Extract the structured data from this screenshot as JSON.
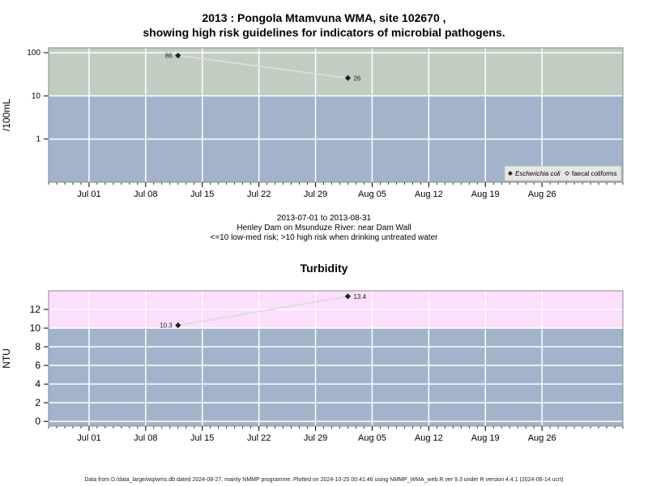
{
  "title_line1": "2013 : Pongola Mtamvuna WMA, site 102670 ,",
  "title_line2": "showing high risk guidelines for indicators of microbial pathogens.",
  "info_range": "2013-07-01 to 2013-08-31",
  "info_site": "Henley Dam on Msunduze River: near Dam Wall",
  "info_risk": "<=10 low-med risk; >10 high risk when drinking untreated water",
  "turbidity_title": "Turbidity",
  "footer": "Data from D:/data_large/wq/wms.db dated 2024-08-27, mainly NMMP programme. Plotted on 2024-10-25 00:41:46 using NMMP_WMA_web.R ver 9.3 under R version 4.4.1 (2024-06-14 ucrt)",
  "colors": {
    "low_band": "#a3b3cc",
    "micro_high_band": "#c2cdc1",
    "turb_high_band": "#fcdffc",
    "line": "#dcdcdc",
    "point": "#222222"
  },
  "chart_data": [
    {
      "type": "line",
      "title": "",
      "ylabel": "/100mL",
      "yscale": "log",
      "ylim": [
        0.1,
        130
      ],
      "xlim": [
        "2013-06-26",
        "2013-09-05"
      ],
      "x_ticks": [
        {
          "date": "2013-07-01",
          "label": "Jul 01"
        },
        {
          "date": "2013-07-08",
          "label": "Jul 08"
        },
        {
          "date": "2013-07-15",
          "label": "Jul 15"
        },
        {
          "date": "2013-07-22",
          "label": "Jul 22"
        },
        {
          "date": "2013-07-29",
          "label": "Jul 29"
        },
        {
          "date": "2013-08-05",
          "label": "Aug 05"
        },
        {
          "date": "2013-08-12",
          "label": "Aug 12"
        },
        {
          "date": "2013-08-19",
          "label": "Aug 19"
        },
        {
          "date": "2013-08-26",
          "label": "Aug 26"
        }
      ],
      "y_ticks": [
        {
          "value": 1,
          "label": "1"
        },
        {
          "value": 10,
          "label": "10"
        },
        {
          "value": 100,
          "label": "100"
        }
      ],
      "threshold": 10,
      "grid": true,
      "legend_position": "bottom-right",
      "legend": [
        {
          "label": "Escherichia coli",
          "marker": "filled-diamond"
        },
        {
          "label": "faecal coliforms",
          "marker": "open-diamond"
        }
      ],
      "series": [
        {
          "name": "Escherichia coli",
          "points": [
            {
              "x": "2013-07-12",
              "y": 86,
              "label": "86"
            },
            {
              "x": "2013-08-02",
              "y": 26,
              "label": "26"
            }
          ]
        }
      ]
    },
    {
      "type": "line",
      "title": "Turbidity",
      "ylabel": "NTU",
      "ylim": [
        -0.5,
        14
      ],
      "xlim": [
        "2013-06-26",
        "2013-09-05"
      ],
      "x_ticks": [
        {
          "date": "2013-07-01",
          "label": "Jul 01"
        },
        {
          "date": "2013-07-08",
          "label": "Jul 08"
        },
        {
          "date": "2013-07-15",
          "label": "Jul 15"
        },
        {
          "date": "2013-07-22",
          "label": "Jul 22"
        },
        {
          "date": "2013-07-29",
          "label": "Jul 29"
        },
        {
          "date": "2013-08-05",
          "label": "Aug 05"
        },
        {
          "date": "2013-08-12",
          "label": "Aug 12"
        },
        {
          "date": "2013-08-19",
          "label": "Aug 19"
        },
        {
          "date": "2013-08-26",
          "label": "Aug 26"
        }
      ],
      "y_ticks": [
        {
          "value": 0,
          "label": "0"
        },
        {
          "value": 2,
          "label": "2"
        },
        {
          "value": 4,
          "label": "4"
        },
        {
          "value": 6,
          "label": "6"
        },
        {
          "value": 8,
          "label": "8"
        },
        {
          "value": 10,
          "label": "10"
        },
        {
          "value": 12,
          "label": "12"
        }
      ],
      "threshold": 10,
      "grid": true,
      "series": [
        {
          "name": "",
          "points": [
            {
              "x": "2013-07-12",
              "y": 10.3,
              "label": "10.3"
            },
            {
              "x": "2013-08-02",
              "y": 13.4,
              "label": "13.4"
            }
          ]
        }
      ]
    }
  ]
}
